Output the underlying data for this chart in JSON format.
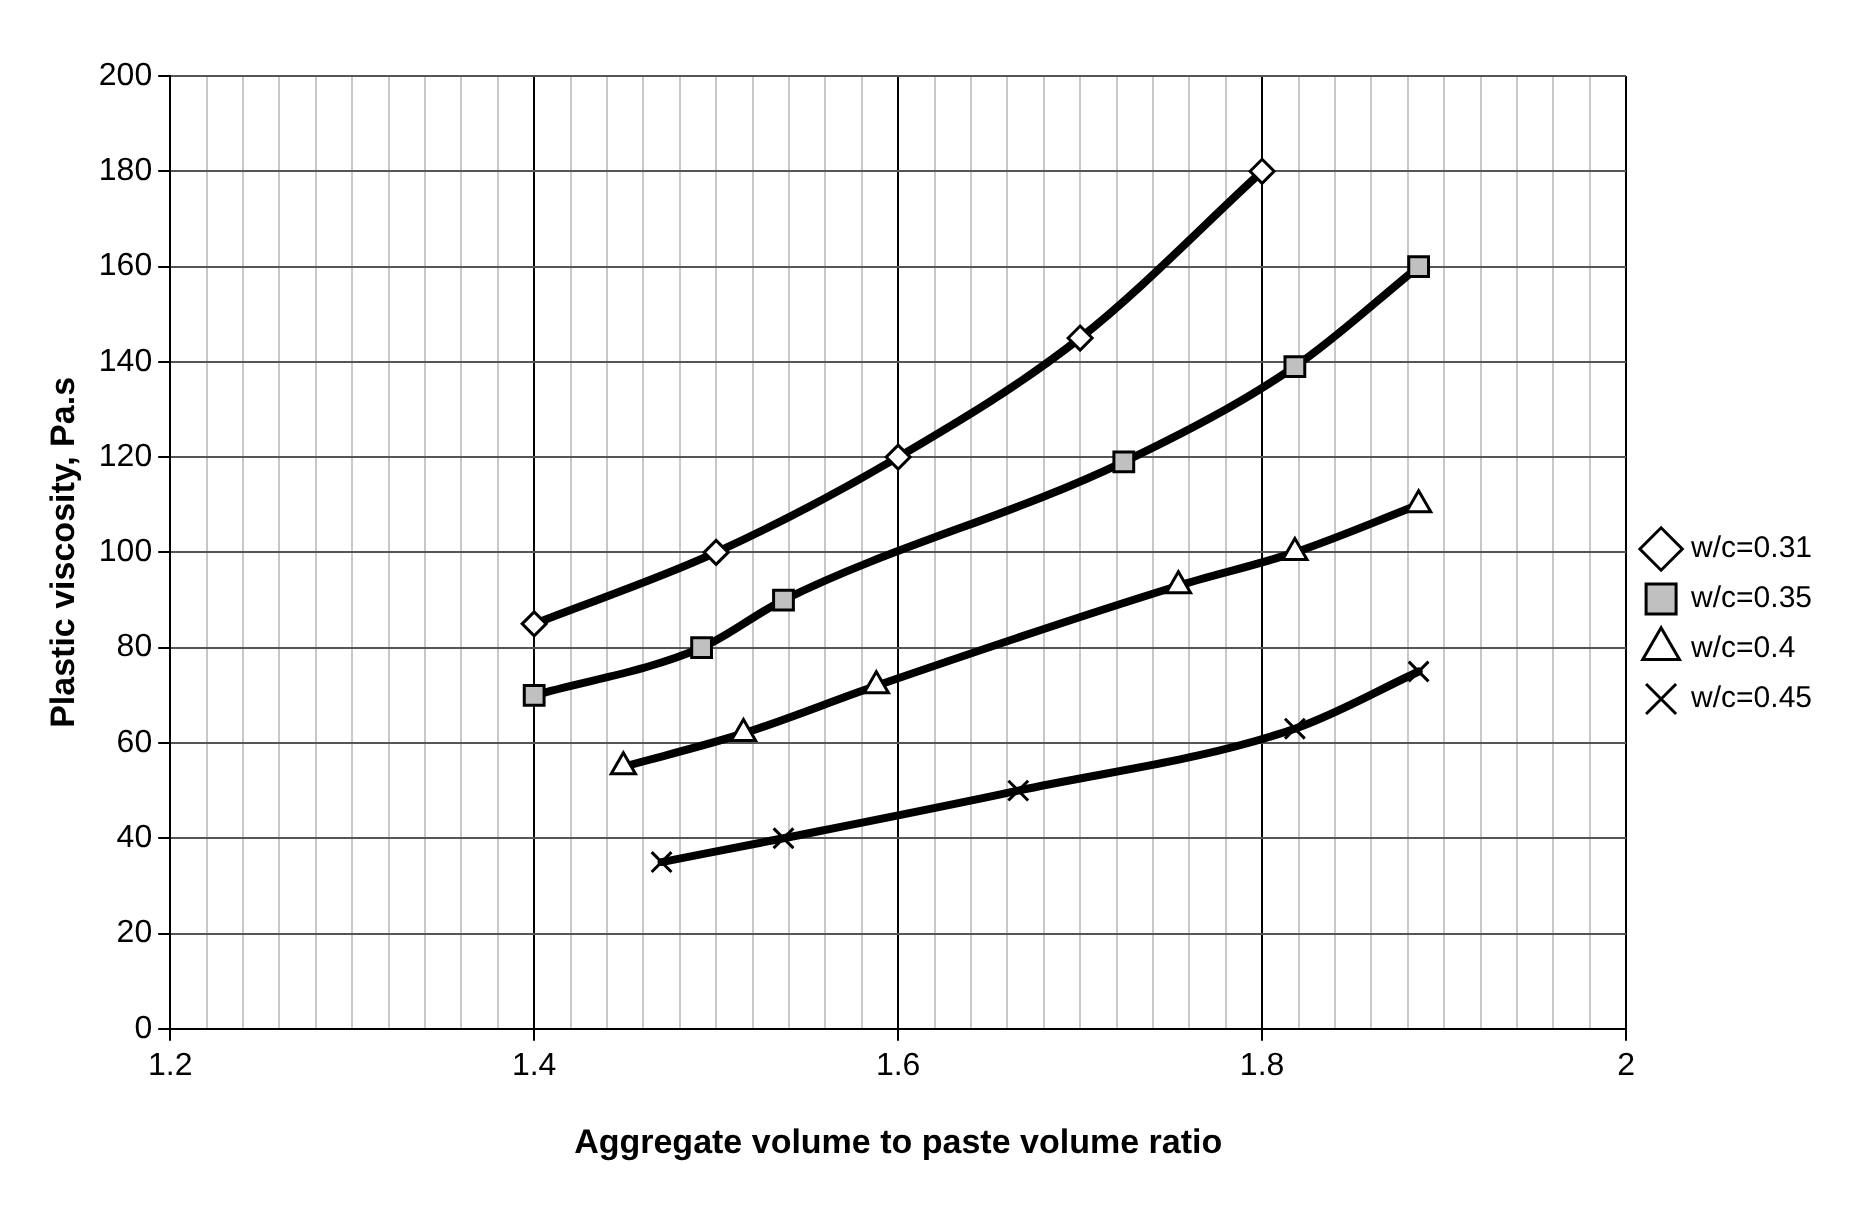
{
  "chart_data": {
    "type": "line",
    "xlabel": "Aggregate volume to paste volume ratio",
    "ylabel": "Plastic viscosity, Pa.s",
    "xlim": [
      1.2,
      2
    ],
    "ylim": [
      0,
      200
    ],
    "xticks": [
      1.2,
      {
        "value": 1.22,
        "label": null
      },
      {
        "value": 1.24,
        "label": null
      },
      {
        "value": 1.26,
        "label": null
      },
      {
        "value": 1.28,
        "label": null
      },
      {
        "value": 1.3,
        "label": null
      },
      {
        "value": 1.32,
        "label": null
      },
      {
        "value": 1.34,
        "label": null
      },
      {
        "value": 1.36,
        "label": null
      },
      {
        "value": 1.38,
        "label": null
      },
      1.4,
      {
        "value": 1.42,
        "label": null
      },
      {
        "value": 1.44,
        "label": null
      },
      {
        "value": 1.46,
        "label": null
      },
      {
        "value": 1.48,
        "label": null
      },
      {
        "value": 1.5,
        "label": null
      },
      {
        "value": 1.52,
        "label": null
      },
      {
        "value": 1.54,
        "label": null
      },
      {
        "value": 1.56,
        "label": null
      },
      {
        "value": 1.58,
        "label": null
      },
      1.6,
      {
        "value": 1.62,
        "label": null
      },
      {
        "value": 1.64,
        "label": null
      },
      {
        "value": 1.66,
        "label": null
      },
      {
        "value": 1.68,
        "label": null
      },
      {
        "value": 1.7,
        "label": null
      },
      {
        "value": 1.72,
        "label": null
      },
      {
        "value": 1.74,
        "label": null
      },
      {
        "value": 1.76,
        "label": null
      },
      {
        "value": 1.78,
        "label": null
      },
      1.8,
      {
        "value": 1.82,
        "label": null
      },
      {
        "value": 1.84,
        "label": null
      },
      {
        "value": 1.86,
        "label": null
      },
      {
        "value": 1.88,
        "label": null
      },
      {
        "value": 1.9,
        "label": null
      },
      {
        "value": 1.92,
        "label": null
      },
      {
        "value": 1.94,
        "label": null
      },
      {
        "value": 1.96,
        "label": null
      },
      {
        "value": 1.98,
        "label": null
      },
      2
    ],
    "yticks": [
      0,
      20,
      40,
      60,
      80,
      100,
      120,
      140,
      160,
      180,
      200
    ],
    "grid": true,
    "legend": "right",
    "line_style": "solid",
    "series": [
      {
        "name": "w/c=0.31",
        "color": "#000000",
        "marker": "diamond",
        "x": [
          1.4,
          1.5,
          1.6,
          1.7,
          1.8
        ],
        "values": [
          85,
          100,
          120,
          145,
          180
        ]
      },
      {
        "name": "w/c=0.35",
        "color": "#000000",
        "marker": "square",
        "x": [
          1.4,
          1.492,
          1.537,
          1.724,
          1.818,
          1.886
        ],
        "values": [
          70,
          80,
          90,
          119,
          139,
          160
        ]
      },
      {
        "name": "w/c=0.4",
        "color": "#000000",
        "marker": "triangle",
        "x": [
          1.449,
          1.515,
          1.588,
          1.754,
          1.818,
          1.886
        ],
        "values": [
          55,
          62,
          72,
          93,
          100,
          110
        ]
      },
      {
        "name": "w/c=0.45",
        "color": "#000000",
        "marker": "cross",
        "x": [
          1.47,
          1.537,
          1.666,
          1.818,
          1.886
        ],
        "values": [
          35,
          40,
          50,
          63,
          75
        ]
      }
    ]
  }
}
